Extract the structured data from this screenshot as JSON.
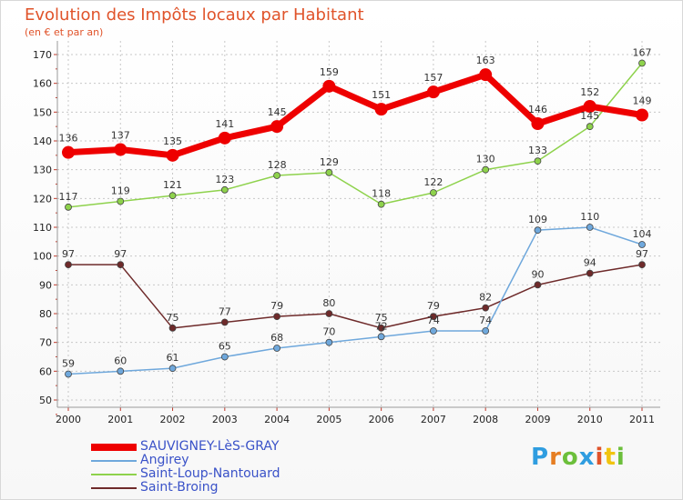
{
  "chart_data": {
    "type": "line",
    "title": "Evolution des Impôts locaux par Habitant",
    "subtitle": "(en € et par an)",
    "xlabel": "",
    "ylabel": "",
    "x": [
      "2000",
      "2001",
      "2002",
      "2003",
      "2004",
      "2005",
      "2006",
      "2007",
      "2008",
      "2009",
      "2010",
      "2011"
    ],
    "ylim": [
      50,
      170
    ],
    "yticks": [
      50,
      60,
      70,
      80,
      90,
      100,
      110,
      120,
      130,
      140,
      150,
      160,
      170
    ],
    "grid": true,
    "legend_position": "bottom-left",
    "series": [
      {
        "name": "SAUVIGNEY-LèS-GRAY",
        "color": "#ee0000",
        "values": [
          136,
          137,
          135,
          141,
          145,
          159,
          151,
          157,
          163,
          146,
          152,
          149
        ]
      },
      {
        "name": "Angirey",
        "color": "#6fa8dc",
        "values": [
          59,
          60,
          61,
          65,
          68,
          70,
          72,
          74,
          74,
          109,
          110,
          104
        ]
      },
      {
        "name": "Saint-Loup-Nantouard",
        "color": "#8ed24c",
        "values": [
          117,
          119,
          121,
          123,
          128,
          129,
          118,
          122,
          130,
          133,
          145,
          167
        ]
      },
      {
        "name": "Saint-Broing",
        "color": "#6e2a2a",
        "values": [
          97,
          97,
          75,
          77,
          79,
          80,
          75,
          79,
          82,
          90,
          94,
          97
        ]
      }
    ]
  },
  "logo": {
    "letters": [
      "P",
      "r",
      "o",
      "x",
      "i",
      "t",
      "i"
    ],
    "colors": [
      "#2f9de0",
      "#e67e22",
      "#6cbf3b",
      "#2f9de0",
      "#e0532a",
      "#f1c40f",
      "#6cbf3b"
    ]
  }
}
